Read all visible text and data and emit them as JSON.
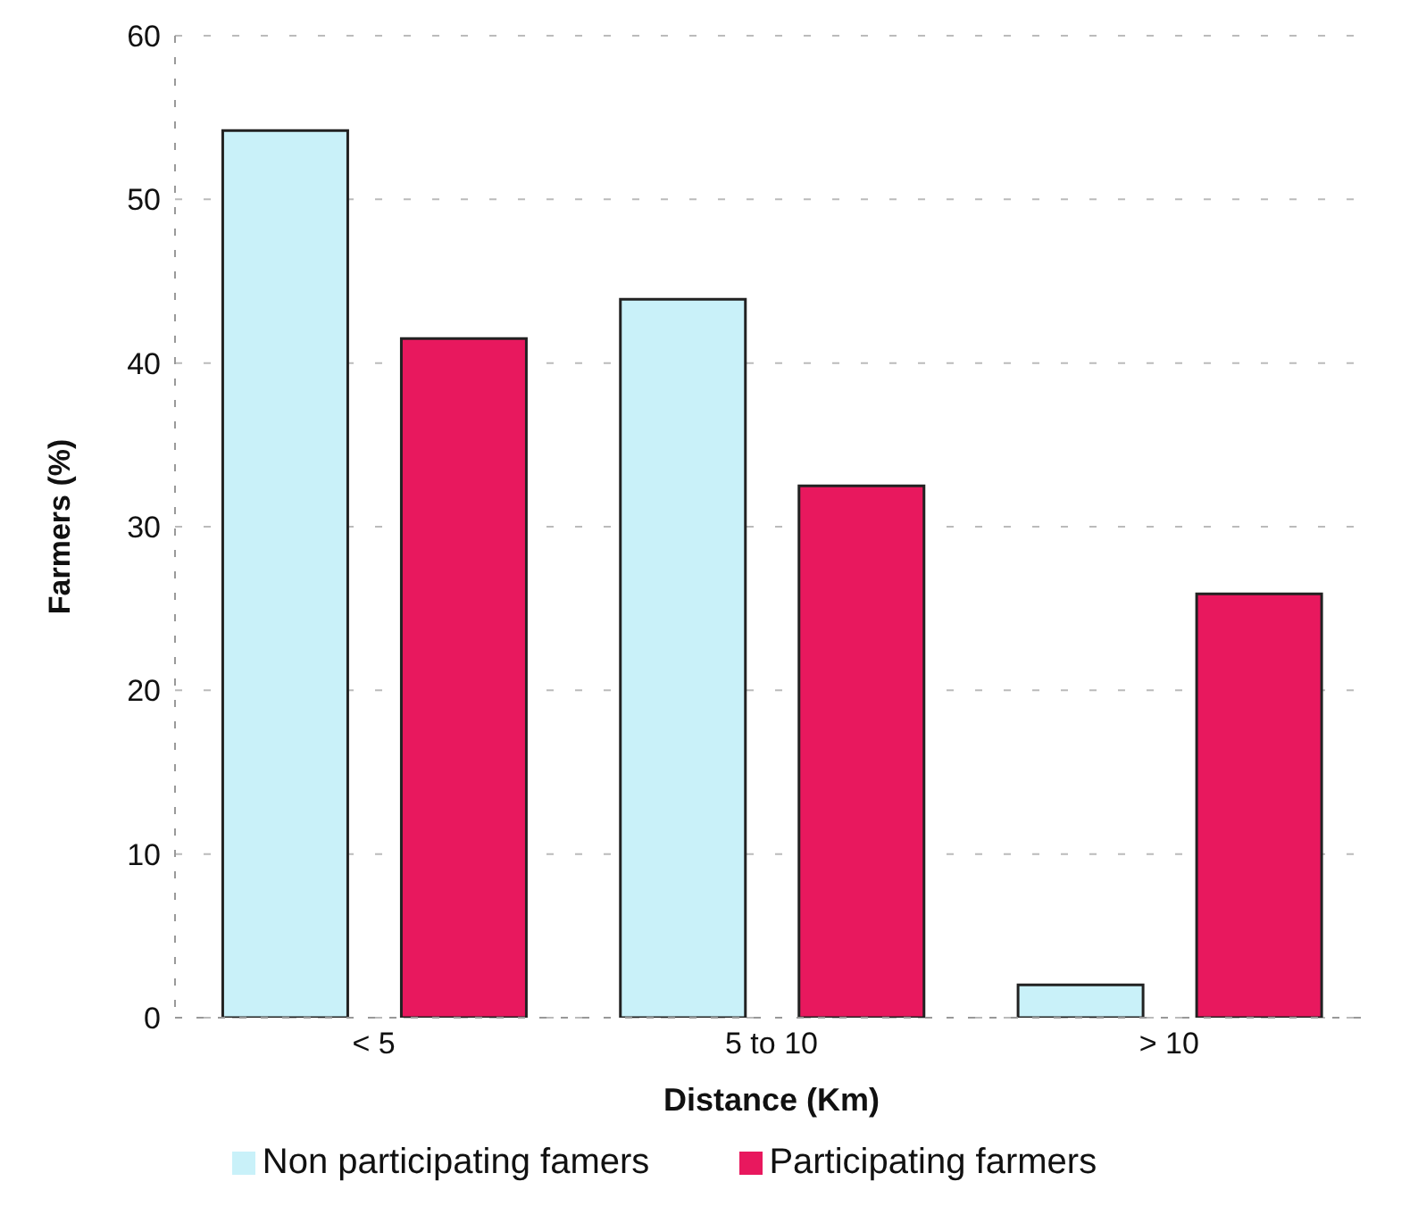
{
  "chart_data": {
    "type": "bar",
    "xlabel": "Distance (Km)",
    "ylabel": "Farmers (%)",
    "categories": [
      "< 5",
      "5  to 10",
      "> 10"
    ],
    "series": [
      {
        "name": "Non participating famers",
        "color": "#c9f1f9",
        "values": [
          54.2,
          43.9,
          2
        ]
      },
      {
        "name": "Participating farmers",
        "color": "#e8185e",
        "values": [
          41.5,
          32.5,
          25.9
        ]
      }
    ],
    "ylim": [
      0,
      60
    ],
    "yticks": [
      0,
      10,
      20,
      30,
      40,
      50,
      60
    ],
    "grid": "y",
    "legend": "bottom"
  }
}
